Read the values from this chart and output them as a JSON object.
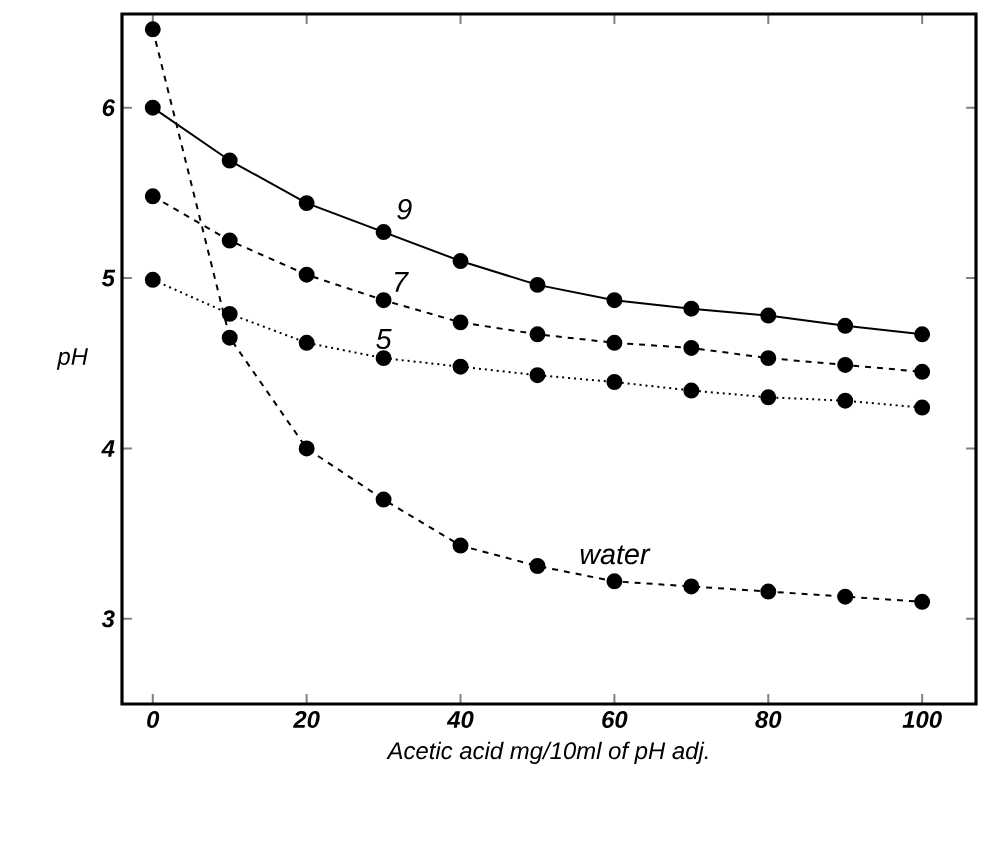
{
  "chart_data": {
    "type": "line",
    "xlabel": "Acetic acid mg/10ml of pH adj.",
    "ylabel": "pH",
    "x": [
      0,
      10,
      20,
      30,
      40,
      50,
      60,
      70,
      80,
      90,
      100
    ],
    "xlim": [
      -4,
      107
    ],
    "xticks": [
      0,
      20,
      40,
      60,
      80,
      100
    ],
    "ylim": [
      2.5,
      6.55
    ],
    "yticks": [
      3,
      4,
      5,
      6
    ],
    "marker": "circle",
    "grid": false,
    "series": [
      {
        "name": "9",
        "color": "#000000",
        "line_style": "solid",
        "values": [
          6.0,
          5.69,
          5.44,
          5.27,
          5.1,
          4.96,
          4.87,
          4.82,
          4.78,
          4.72,
          4.67
        ]
      },
      {
        "name": "7",
        "color": "#000000",
        "line_style": "dashed",
        "values": [
          5.48,
          5.22,
          5.02,
          4.87,
          4.74,
          4.67,
          4.62,
          4.59,
          4.53,
          4.49,
          4.45
        ]
      },
      {
        "name": "5",
        "color": "#000000",
        "line_style": "dotted",
        "values": [
          4.99,
          4.79,
          4.62,
          4.53,
          4.48,
          4.43,
          4.39,
          4.34,
          4.3,
          4.28,
          4.24
        ]
      },
      {
        "name": "water",
        "color": "#000000",
        "line_style": "dashed",
        "values": [
          6.46,
          4.65,
          4.0,
          3.7,
          3.43,
          3.31,
          3.22,
          3.19,
          3.16,
          3.13,
          3.1
        ]
      }
    ]
  }
}
